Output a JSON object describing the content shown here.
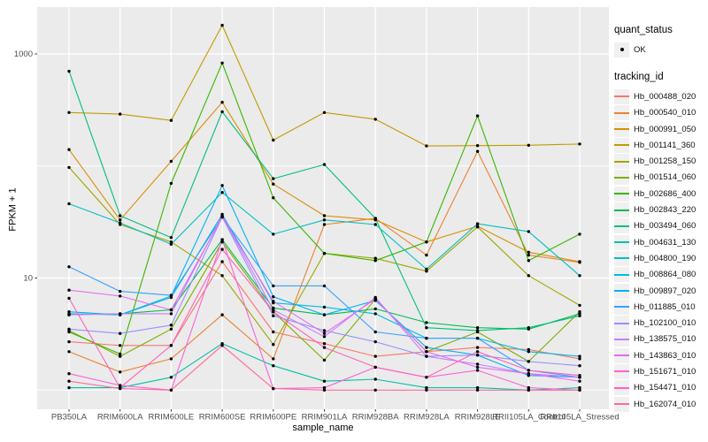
{
  "legend": {
    "quant_status": {
      "title": "quant_status",
      "items": [
        {
          "label": "OK",
          "symbol": "point"
        }
      ]
    },
    "tracking_id": {
      "title": "tracking_id"
    }
  },
  "chart_data": {
    "type": "line",
    "title": "",
    "xlabel": "sample_name",
    "ylabel": "FPKM + 1",
    "y_scale": "log10",
    "y_ticks": [
      1000,
      10
    ],
    "y_tick_labels": [
      "1000",
      "10"
    ],
    "y_minor_gridlines": [
      100,
      1
    ],
    "ylim": [
      0.68,
      2600
    ],
    "legend_position": "right",
    "grid": true,
    "panel_bg": "#EBEBEB",
    "grid_color": "#FFFFFF",
    "point_color": "#000000",
    "categories": [
      "PB350LA",
      "RRIM600LA",
      "RRIM600LE",
      "RRIM600SE",
      "RRIM600PE",
      "RRIM901LA",
      "RRIM928BA",
      "RRIM928LA",
      "RRIM928LE",
      "RRII105LA_Control",
      "RRII105LA_Stressed"
    ],
    "series": [
      {
        "name": "Hb_000488_020",
        "color": "#F8766D",
        "values": [
          2.7,
          2.5,
          2.5,
          14,
          3.3,
          2.6,
          2.0,
          2.2,
          2.4,
          2.3,
          1.9
        ]
      },
      {
        "name": "Hb_000540_010",
        "color": "#EA8331",
        "values": [
          2.2,
          1.45,
          1.9,
          4.7,
          1.9,
          30,
          34,
          16,
          135,
          16,
          13.8
        ]
      },
      {
        "name": "Hb_000991_050",
        "color": "#D89000",
        "values": [
          140,
          33,
          110,
          370,
          69,
          36,
          33,
          21,
          29,
          17,
          14
        ]
      },
      {
        "name": "Hb_001141_360",
        "color": "#C09B00",
        "values": [
          300,
          290,
          255,
          1800,
          170,
          300,
          261,
          151,
          152,
          153,
          157
        ]
      },
      {
        "name": "Hb_001258_150",
        "color": "#A3A500",
        "values": [
          97,
          30,
          21,
          10.5,
          2.55,
          16.6,
          15,
          11.5,
          28.6,
          10.5,
          5.7
        ]
      },
      {
        "name": "Hb_001514_060",
        "color": "#7CAE00",
        "values": [
          3.4,
          2.0,
          3.5,
          21,
          5.0,
          1.85,
          6.5,
          2.2,
          3.3,
          1.8,
          5.0
        ]
      },
      {
        "name": "Hb_002686_400",
        "color": "#39B600",
        "values": [
          3.3,
          2.1,
          70,
          830,
          52,
          16.6,
          14.3,
          21,
          280,
          14.3,
          24.6
        ]
      },
      {
        "name": "Hb_002843_220",
        "color": "#00BB4E",
        "values": [
          4.7,
          4.8,
          5.2,
          22,
          5.4,
          4.7,
          5.3,
          4.0,
          3.6,
          3.5,
          4.8
        ]
      },
      {
        "name": "Hb_003494_060",
        "color": "#00BF7D",
        "values": [
          700,
          36,
          23,
          305,
          77,
          103,
          34,
          3.6,
          3.4,
          3.6,
          4.6
        ]
      },
      {
        "name": "Hb_004631_130",
        "color": "#00C1A3",
        "values": [
          1.05,
          1.05,
          1.3,
          2.6,
          1.65,
          1.2,
          1.25,
          1.05,
          1.05,
          1.0,
          1.05
        ]
      },
      {
        "name": "Hb_004800_190",
        "color": "#00BFC4",
        "values": [
          46,
          31,
          20,
          58,
          24.6,
          33,
          30,
          12,
          30.5,
          26,
          10.5
        ]
      },
      {
        "name": "Hb_008864_080",
        "color": "#00BAE0",
        "values": [
          4.8,
          4.7,
          6.7,
          37,
          6.0,
          5.5,
          4.8,
          2.9,
          2.9,
          2.2,
          2.0
        ]
      },
      {
        "name": "Hb_009897_020",
        "color": "#00B0F6",
        "values": [
          5.0,
          4.7,
          6.9,
          67,
          6.8,
          4.7,
          6.3,
          2.4,
          2.05,
          1.35,
          1.3
        ]
      },
      {
        "name": "Hb_011885_010",
        "color": "#35A2FF",
        "values": [
          12.6,
          7.6,
          7.0,
          35,
          8.5,
          8.5,
          3.3,
          2.9,
          2.9,
          1.5,
          1.3
        ]
      },
      {
        "name": "Hb_102100_010",
        "color": "#9590FF",
        "values": [
          3.5,
          3.2,
          3.8,
          35,
          4.6,
          3.4,
          2.7,
          2.0,
          2.05,
          1.8,
          1.65
        ]
      },
      {
        "name": "Hb_138575_010",
        "color": "#C77CFF",
        "values": [
          4.7,
          4.8,
          4.8,
          36,
          5.2,
          3.0,
          6.7,
          2.0,
          1.7,
          1.4,
          1.3
        ]
      },
      {
        "name": "Hb_143863_010",
        "color": "#E76BF3",
        "values": [
          7.8,
          6.9,
          5.2,
          35,
          6.2,
          3.2,
          6.5,
          2.2,
          1.6,
          1.4,
          1.2
        ]
      },
      {
        "name": "Hb_151671_010",
        "color": "#FA62DB",
        "values": [
          1.4,
          1.1,
          1.0,
          22,
          1.03,
          1.05,
          1.6,
          1.3,
          1.5,
          1.05,
          1.0
        ]
      },
      {
        "name": "Hb_154471_010",
        "color": "#FF62BC",
        "values": [
          6.6,
          1.05,
          2.5,
          18,
          5.0,
          2.4,
          1.6,
          1.3,
          2.2,
          1.5,
          1.35
        ]
      },
      {
        "name": "Hb_162074_010",
        "color": "#FF6A98",
        "values": [
          1.2,
          1.03,
          1.0,
          2.5,
          1.03,
          1.0,
          1.0,
          1.0,
          1.0,
          1.0,
          1.0
        ]
      }
    ]
  }
}
